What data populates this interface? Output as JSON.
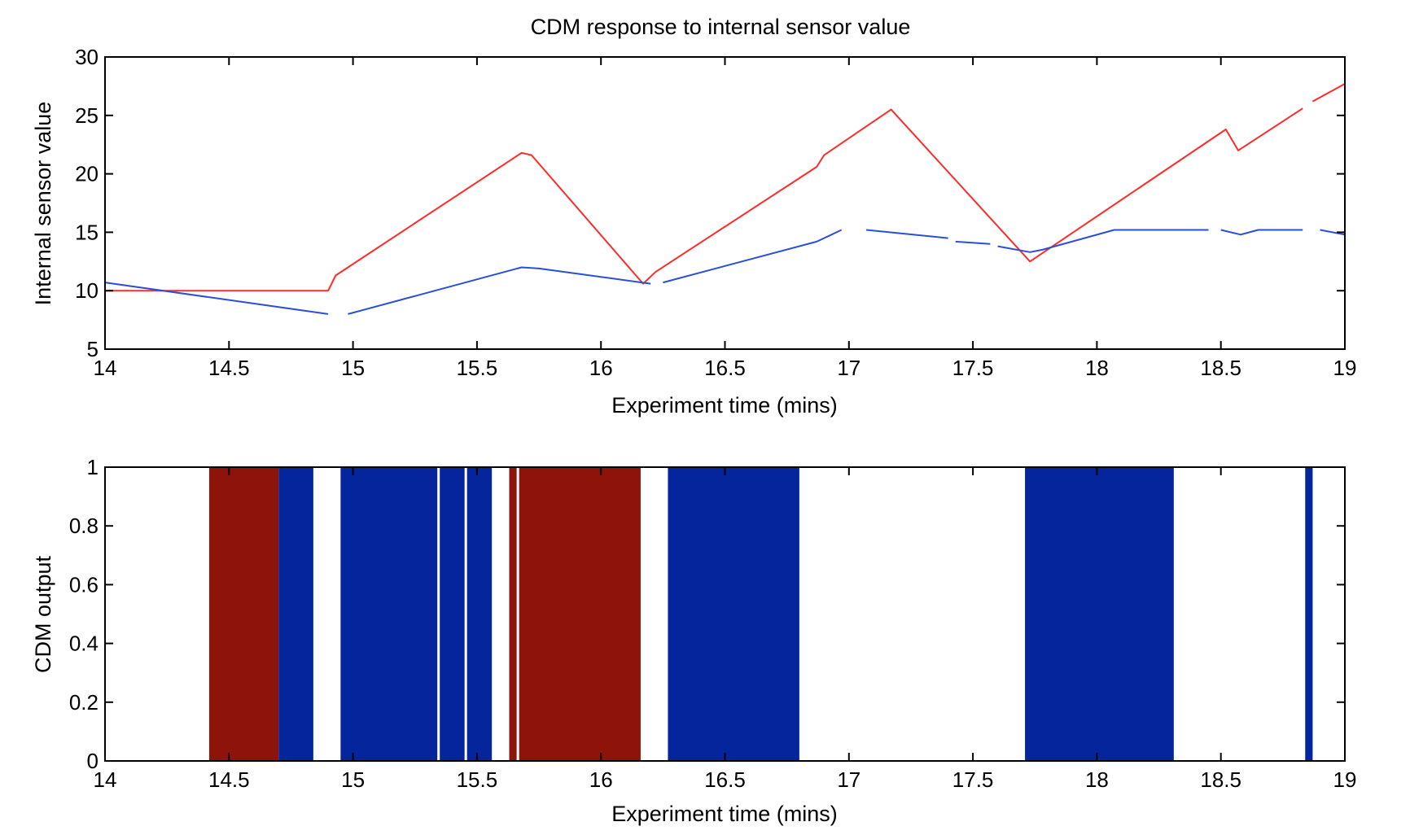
{
  "chart_data": [
    {
      "type": "line",
      "title": "CDM response to internal sensor value",
      "xlabel": "Experiment time (mins)",
      "ylabel": "Internal sensor value",
      "xlim": [
        14,
        19
      ],
      "ylim": [
        5,
        30
      ],
      "xticks": [
        "14",
        "14.5",
        "15",
        "15.5",
        "16",
        "16.5",
        "17",
        "17.5",
        "18",
        "18.5",
        "19"
      ],
      "yticks": [
        "5",
        "10",
        "15",
        "20",
        "25",
        "30"
      ],
      "grid": false,
      "colors": {
        "red": "#ff2a2a",
        "blue": "#2a4fd6"
      },
      "series": [
        {
          "color": "#ff2a2a",
          "segments": [
            [
              [
                14.0,
                10.0
              ],
              [
                14.9,
                10.0
              ],
              [
                14.93,
                11.3
              ],
              [
                15.68,
                21.8
              ],
              [
                15.72,
                21.6
              ],
              [
                16.17,
                10.6
              ],
              [
                16.22,
                11.6
              ],
              [
                16.87,
                20.6
              ],
              [
                16.9,
                21.6
              ],
              [
                17.17,
                25.5
              ],
              [
                17.73,
                12.5
              ],
              [
                18.52,
                23.8
              ],
              [
                18.57,
                22.0
              ],
              [
                18.83,
                25.6
              ]
            ],
            [
              [
                18.87,
                26.2
              ],
              [
                19.0,
                27.7
              ]
            ]
          ]
        },
        {
          "color": "#2a4fd6",
          "segments": [
            [
              [
                14.0,
                10.7
              ],
              [
                14.9,
                8.0
              ]
            ],
            [
              [
                14.98,
                8.0
              ],
              [
                15.68,
                12.0
              ],
              [
                15.75,
                11.9
              ],
              [
                16.2,
                10.6
              ]
            ],
            [
              [
                16.25,
                10.7
              ],
              [
                16.87,
                14.2
              ],
              [
                16.97,
                15.2
              ]
            ],
            [
              [
                17.07,
                15.2
              ],
              [
                17.4,
                14.5
              ]
            ],
            [
              [
                17.43,
                14.2
              ],
              [
                17.57,
                14.0
              ]
            ],
            [
              [
                17.6,
                13.8
              ],
              [
                17.73,
                13.3
              ],
              [
                17.78,
                13.5
              ],
              [
                18.07,
                15.2
              ],
              [
                18.45,
                15.2
              ]
            ],
            [
              [
                18.5,
                15.2
              ],
              [
                18.58,
                14.8
              ],
              [
                18.65,
                15.2
              ],
              [
                18.83,
                15.2
              ]
            ],
            [
              [
                18.9,
                15.2
              ],
              [
                19.0,
                14.8
              ]
            ]
          ]
        }
      ]
    },
    {
      "type": "bar",
      "xlabel": "Experiment time (mins)",
      "ylabel": "CDM output",
      "xlim": [
        14,
        19
      ],
      "ylim": [
        0,
        1
      ],
      "xticks": [
        "14",
        "14.5",
        "15",
        "15.5",
        "16",
        "16.5",
        "17",
        "17.5",
        "18",
        "18.5",
        "19"
      ],
      "yticks": [
        "0",
        "0.2",
        "0.4",
        "0.6",
        "0.8",
        "1"
      ],
      "grid": false,
      "colors": {
        "red": "#8e140b",
        "blue": "#04259c"
      },
      "bands": [
        {
          "start": 14.42,
          "end": 14.7,
          "value": 1,
          "color": "#8e140b"
        },
        {
          "start": 14.7,
          "end": 14.84,
          "value": 1,
          "color": "#04259c"
        },
        {
          "start": 14.95,
          "end": 15.34,
          "value": 1,
          "color": "#04259c"
        },
        {
          "start": 15.35,
          "end": 15.45,
          "value": 1,
          "color": "#04259c"
        },
        {
          "start": 15.46,
          "end": 15.56,
          "value": 1,
          "color": "#04259c"
        },
        {
          "start": 15.63,
          "end": 15.66,
          "value": 1,
          "color": "#8e140b"
        },
        {
          "start": 15.67,
          "end": 16.16,
          "value": 1,
          "color": "#8e140b"
        },
        {
          "start": 16.27,
          "end": 16.8,
          "value": 1,
          "color": "#04259c"
        },
        {
          "start": 17.71,
          "end": 18.31,
          "value": 1,
          "color": "#04259c"
        },
        {
          "start": 18.84,
          "end": 18.87,
          "value": 1,
          "color": "#04259c"
        }
      ]
    }
  ]
}
